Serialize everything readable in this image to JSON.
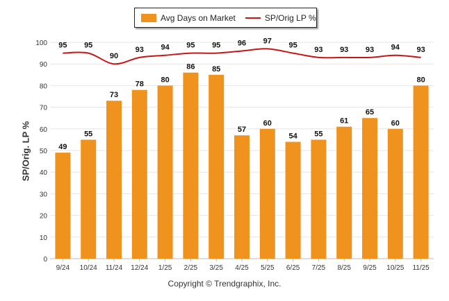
{
  "chart_data": {
    "type": "bar",
    "categories": [
      "9/24",
      "10/24",
      "11/24",
      "12/24",
      "1/25",
      "2/25",
      "3/25",
      "4/25",
      "5/25",
      "6/25",
      "7/25",
      "8/25",
      "9/25",
      "10/25",
      "11/25"
    ],
    "series": [
      {
        "name": "Avg Days on Market",
        "kind": "bar",
        "color": "#f0921e",
        "values": [
          49,
          55,
          73,
          78,
          80,
          86,
          85,
          57,
          60,
          54,
          55,
          61,
          65,
          60,
          80
        ]
      },
      {
        "name": "SP/Orig LP %",
        "kind": "line",
        "color": "#c91414",
        "values": [
          95,
          95,
          90,
          93,
          94,
          95,
          95,
          96,
          97,
          95,
          93,
          93,
          93,
          94,
          93
        ]
      }
    ],
    "ylabel": "SP/Orig. LP %",
    "ylim": [
      0,
      100
    ],
    "yticks": [
      0,
      10,
      20,
      30,
      40,
      50,
      60,
      70,
      80,
      90,
      100
    ],
    "legend_position": "top-center",
    "grid": true
  },
  "legend": {
    "bar_label": "Avg Days on Market",
    "line_label": "SP/Orig LP %"
  },
  "footer": "Copyright © Trendgraphix, Inc."
}
